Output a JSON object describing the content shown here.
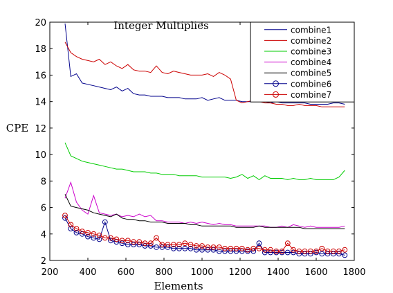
{
  "chart_data": {
    "type": "line",
    "title": "Integer  Multiplies",
    "xlabel": "Elements",
    "ylabel": "CPE",
    "xlim": [
      200,
      1800
    ],
    "ylim": [
      2,
      20
    ],
    "x_ticks": [
      200,
      400,
      600,
      800,
      1000,
      1200,
      1400,
      1600,
      1800
    ],
    "y_ticks": [
      2,
      4,
      6,
      8,
      10,
      12,
      14,
      16,
      18,
      20
    ],
    "grid": false,
    "legend_position": "top-right",
    "series": [
      {
        "name": "combine1",
        "color": "#00008b",
        "marker": "none",
        "x": [
          280,
          310,
          340,
          370,
          400,
          430,
          460,
          490,
          520,
          550,
          580,
          610,
          640,
          670,
          700,
          730,
          760,
          790,
          820,
          850,
          880,
          910,
          940,
          970,
          1000,
          1030,
          1060,
          1090,
          1120,
          1150,
          1180,
          1210,
          1240,
          1270,
          1300,
          1330,
          1360,
          1390,
          1420,
          1450,
          1480,
          1510,
          1540,
          1570,
          1600,
          1630,
          1660,
          1690,
          1720,
          1750
        ],
        "y": [
          19.9,
          15.9,
          16.1,
          15.4,
          15.3,
          15.2,
          15.1,
          15.0,
          14.9,
          15.1,
          14.8,
          15.0,
          14.6,
          14.5,
          14.5,
          14.4,
          14.4,
          14.4,
          14.3,
          14.3,
          14.3,
          14.2,
          14.2,
          14.2,
          14.3,
          14.1,
          14.2,
          14.3,
          14.1,
          14.1,
          14.1,
          14.0,
          14.0,
          14.0,
          14.0,
          14.0,
          13.9,
          14.0,
          13.9,
          13.9,
          13.9,
          13.9,
          13.9,
          13.8,
          13.8,
          13.8,
          13.8,
          13.9,
          13.9,
          13.8
        ]
      },
      {
        "name": "combine2",
        "color": "#cc0000",
        "marker": "none",
        "x": [
          280,
          310,
          340,
          370,
          400,
          430,
          460,
          490,
          520,
          550,
          580,
          610,
          640,
          670,
          700,
          730,
          760,
          790,
          820,
          850,
          880,
          910,
          940,
          970,
          1000,
          1030,
          1060,
          1090,
          1120,
          1150,
          1180,
          1210,
          1240,
          1270,
          1300,
          1330,
          1360,
          1390,
          1420,
          1450,
          1480,
          1510,
          1540,
          1570,
          1600,
          1630,
          1660,
          1690,
          1720,
          1750
        ],
        "y": [
          18.5,
          17.7,
          17.4,
          17.2,
          17.1,
          17.0,
          17.2,
          16.8,
          17.0,
          16.7,
          16.5,
          16.8,
          16.4,
          16.3,
          16.3,
          16.2,
          16.7,
          16.2,
          16.1,
          16.3,
          16.2,
          16.1,
          16.0,
          16.0,
          16.0,
          16.1,
          15.9,
          16.2,
          16.0,
          15.7,
          14.1,
          13.9,
          14.0,
          14.1,
          14.0,
          13.9,
          13.9,
          13.8,
          13.8,
          13.7,
          13.7,
          13.8,
          13.7,
          13.7,
          13.7,
          13.6,
          13.6,
          13.6,
          13.6,
          13.6
        ]
      },
      {
        "name": "combine3",
        "color": "#00cc00",
        "marker": "none",
        "x": [
          280,
          310,
          340,
          370,
          400,
          430,
          460,
          490,
          520,
          550,
          580,
          610,
          640,
          670,
          700,
          730,
          760,
          790,
          820,
          850,
          880,
          910,
          940,
          970,
          1000,
          1030,
          1060,
          1090,
          1120,
          1150,
          1180,
          1210,
          1240,
          1270,
          1300,
          1330,
          1360,
          1390,
          1420,
          1450,
          1480,
          1510,
          1540,
          1570,
          1600,
          1630,
          1660,
          1690,
          1720,
          1750
        ],
        "y": [
          10.9,
          9.9,
          9.7,
          9.5,
          9.4,
          9.3,
          9.2,
          9.1,
          9.0,
          8.9,
          8.9,
          8.8,
          8.7,
          8.7,
          8.7,
          8.6,
          8.6,
          8.5,
          8.5,
          8.5,
          8.4,
          8.4,
          8.4,
          8.4,
          8.3,
          8.3,
          8.3,
          8.3,
          8.3,
          8.2,
          8.3,
          8.5,
          8.2,
          8.4,
          8.1,
          8.4,
          8.2,
          8.2,
          8.2,
          8.1,
          8.2,
          8.1,
          8.1,
          8.2,
          8.1,
          8.1,
          8.1,
          8.1,
          8.3,
          8.8
        ]
      },
      {
        "name": "combine4",
        "color": "#cc00cc",
        "marker": "none",
        "x": [
          280,
          310,
          340,
          370,
          400,
          430,
          460,
          490,
          520,
          550,
          580,
          610,
          640,
          670,
          700,
          730,
          760,
          790,
          820,
          850,
          880,
          910,
          940,
          970,
          1000,
          1030,
          1060,
          1090,
          1120,
          1150,
          1180,
          1210,
          1240,
          1270,
          1300,
          1330,
          1360,
          1390,
          1420,
          1450,
          1480,
          1510,
          1540,
          1570,
          1600,
          1630,
          1660,
          1690,
          1720,
          1750
        ],
        "y": [
          6.7,
          7.9,
          6.4,
          5.8,
          5.5,
          6.9,
          5.6,
          5.5,
          5.4,
          5.5,
          5.3,
          5.4,
          5.3,
          5.5,
          5.3,
          5.4,
          5.0,
          5.0,
          4.9,
          4.9,
          4.9,
          4.8,
          4.9,
          4.8,
          4.9,
          4.8,
          4.7,
          4.8,
          4.7,
          4.7,
          4.6,
          4.6,
          4.6,
          4.6,
          4.6,
          4.6,
          4.5,
          4.5,
          4.6,
          4.5,
          4.7,
          4.6,
          4.5,
          4.6,
          4.5,
          4.5,
          4.5,
          4.5,
          4.5,
          4.6
        ]
      },
      {
        "name": "combine5",
        "color": "#000000",
        "marker": "none",
        "x": [
          280,
          310,
          340,
          370,
          400,
          430,
          460,
          490,
          520,
          550,
          580,
          610,
          640,
          670,
          700,
          730,
          760,
          790,
          820,
          850,
          880,
          910,
          940,
          970,
          1000,
          1030,
          1060,
          1090,
          1120,
          1150,
          1180,
          1210,
          1240,
          1270,
          1300,
          1330,
          1360,
          1390,
          1420,
          1450,
          1480,
          1510,
          1540,
          1570,
          1600,
          1630,
          1660,
          1690,
          1720,
          1750
        ],
        "y": [
          7.0,
          6.1,
          6.0,
          5.9,
          5.8,
          5.6,
          5.5,
          5.4,
          5.3,
          5.5,
          5.2,
          5.1,
          5.1,
          5.0,
          5.0,
          4.9,
          4.9,
          4.9,
          4.8,
          4.8,
          4.8,
          4.8,
          4.7,
          4.7,
          4.6,
          4.6,
          4.6,
          4.6,
          4.6,
          4.6,
          4.5,
          4.5,
          4.5,
          4.5,
          4.6,
          4.5,
          4.5,
          4.5,
          4.5,
          4.5,
          4.5,
          4.5,
          4.4,
          4.4,
          4.4,
          4.4,
          4.4,
          4.4,
          4.4,
          4.4
        ]
      },
      {
        "name": "combine6",
        "color": "#00008b",
        "marker": "circle",
        "x": [
          280,
          310,
          340,
          370,
          400,
          430,
          460,
          490,
          520,
          550,
          580,
          610,
          640,
          670,
          700,
          730,
          760,
          790,
          820,
          850,
          880,
          910,
          940,
          970,
          1000,
          1030,
          1060,
          1090,
          1120,
          1150,
          1180,
          1210,
          1240,
          1270,
          1300,
          1330,
          1360,
          1390,
          1420,
          1450,
          1480,
          1510,
          1540,
          1570,
          1600,
          1630,
          1660,
          1690,
          1720,
          1750
        ],
        "y": [
          5.2,
          4.4,
          4.1,
          4.0,
          3.8,
          3.7,
          3.6,
          4.9,
          3.5,
          3.4,
          3.3,
          3.2,
          3.2,
          3.2,
          3.1,
          3.1,
          3.0,
          3.0,
          3.0,
          2.9,
          2.9,
          2.9,
          2.9,
          2.8,
          2.8,
          2.8,
          2.8,
          2.7,
          2.7,
          2.7,
          2.7,
          2.7,
          2.7,
          2.7,
          3.3,
          2.6,
          2.6,
          2.6,
          2.6,
          2.6,
          2.6,
          2.5,
          2.5,
          2.5,
          2.6,
          2.5,
          2.5,
          2.5,
          2.5,
          2.4
        ]
      },
      {
        "name": "combine7",
        "color": "#cc0000",
        "marker": "circle",
        "x": [
          280,
          310,
          340,
          370,
          400,
          430,
          460,
          490,
          520,
          550,
          580,
          610,
          640,
          670,
          700,
          730,
          760,
          790,
          820,
          850,
          880,
          910,
          940,
          970,
          1000,
          1030,
          1060,
          1090,
          1120,
          1150,
          1180,
          1210,
          1240,
          1270,
          1300,
          1330,
          1360,
          1390,
          1420,
          1450,
          1480,
          1510,
          1540,
          1570,
          1600,
          1630,
          1660,
          1690,
          1720,
          1750
        ],
        "y": [
          5.4,
          4.7,
          4.4,
          4.2,
          4.1,
          4.0,
          3.9,
          3.7,
          3.7,
          3.6,
          3.5,
          3.5,
          3.4,
          3.4,
          3.3,
          3.3,
          3.7,
          3.2,
          3.2,
          3.2,
          3.2,
          3.3,
          3.2,
          3.1,
          3.1,
          3.0,
          3.0,
          3.0,
          2.9,
          2.9,
          2.9,
          2.9,
          2.8,
          2.9,
          2.9,
          2.8,
          2.8,
          2.7,
          2.7,
          3.3,
          2.8,
          2.7,
          2.7,
          2.7,
          2.7,
          2.9,
          2.7,
          2.7,
          2.7,
          2.8
        ]
      }
    ]
  }
}
